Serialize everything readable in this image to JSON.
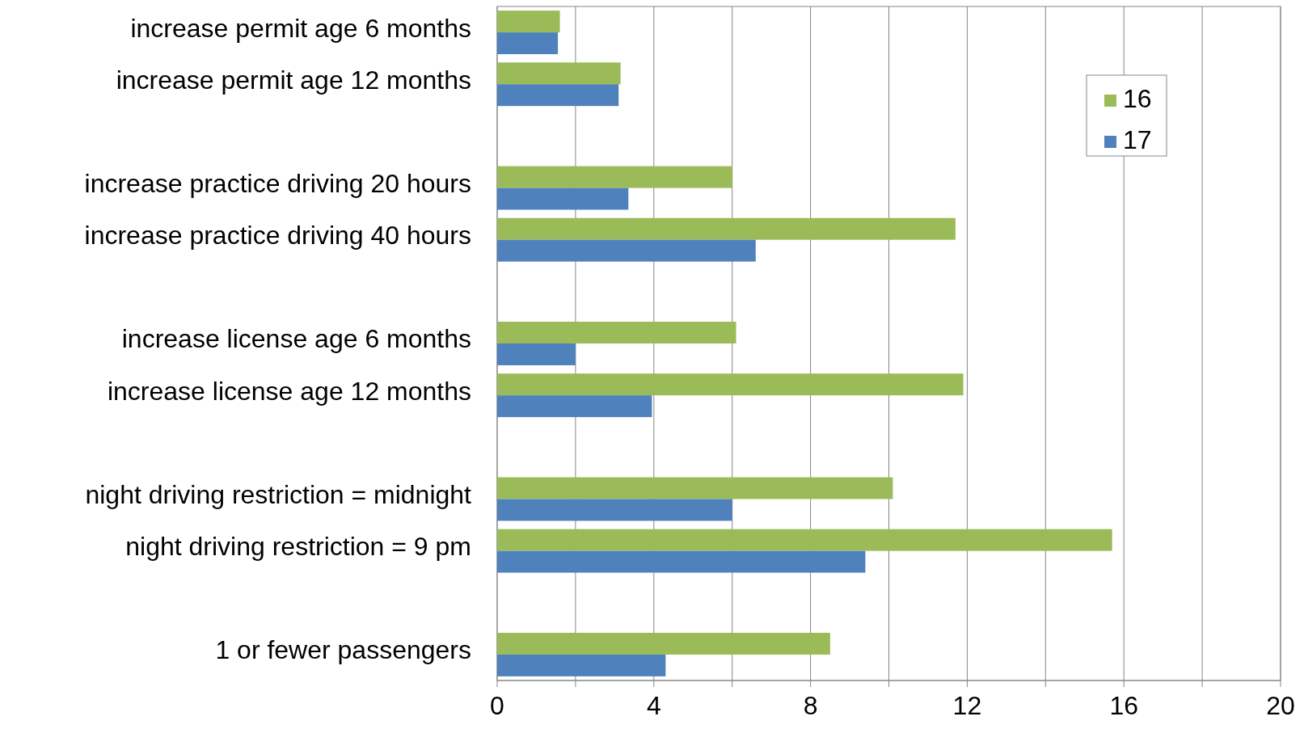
{
  "chart_data": {
    "type": "bar",
    "orientation": "horizontal",
    "categories": [
      "increase permit age 6 months",
      "increase permit age 12 months",
      null,
      "increase practice driving 20 hours",
      "increase practice driving 40 hours",
      null,
      "increase license age 6 months",
      "increase license age 12 months",
      null,
      "night driving restriction = midnight",
      "night driving restriction = 9 pm",
      null,
      "1 or fewer passengers"
    ],
    "series": [
      {
        "name": "16",
        "color": "#9bbb59",
        "values": [
          1.6,
          3.15,
          null,
          6.0,
          11.7,
          null,
          6.1,
          11.9,
          null,
          10.1,
          15.7,
          null,
          8.5
        ]
      },
      {
        "name": "17",
        "color": "#4f81bd",
        "values": [
          1.55,
          3.1,
          null,
          3.35,
          6.6,
          null,
          2.0,
          3.95,
          null,
          6.0,
          9.4,
          null,
          4.3
        ]
      }
    ],
    "xlim": [
      0,
      20
    ],
    "xticks": [
      0,
      {
        "value": 2,
        "label": null
      },
      4,
      {
        "value": 6,
        "label": null
      },
      8,
      {
        "value": 10,
        "label": null
      },
      12,
      {
        "value": 14,
        "label": null
      },
      16,
      {
        "value": 18,
        "label": null
      },
      20
    ],
    "grid": "x",
    "legend": "top right"
  }
}
